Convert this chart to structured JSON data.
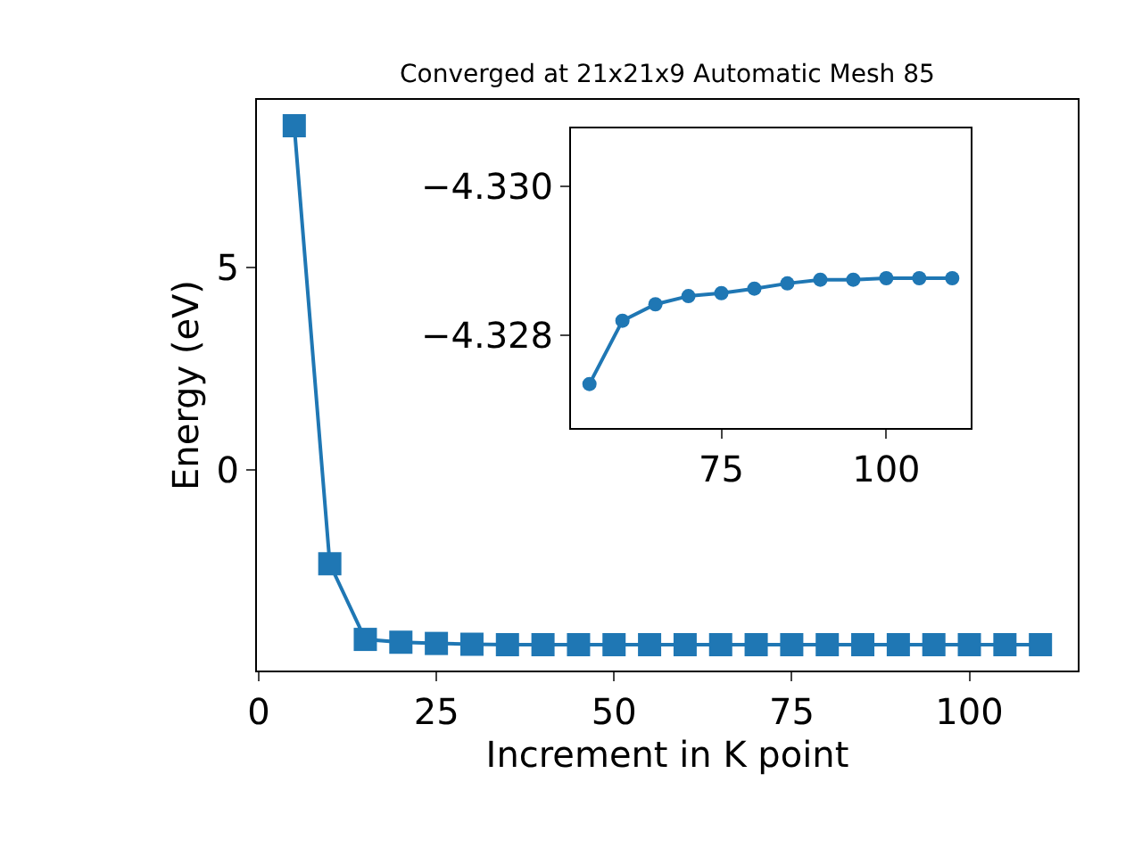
{
  "chart_data": [
    {
      "type": "line",
      "title": "Converged at 21x21x9 Automatic Mesh 85",
      "xlabel": "Increment in K point",
      "ylabel": "Energy (eV)",
      "x": [
        5,
        10,
        15,
        20,
        25,
        30,
        35,
        40,
        45,
        50,
        55,
        60,
        65,
        70,
        75,
        80,
        85,
        90,
        95,
        100,
        105,
        110
      ],
      "series": [
        {
          "color": "#1f77b4",
          "values": [
            8.5,
            -2.33,
            -4.2,
            -4.27,
            -4.3,
            -4.32,
            -4.33,
            -4.33,
            -4.33,
            -4.33,
            -4.33,
            -4.33,
            -4.33,
            -4.33,
            -4.33,
            -4.33,
            -4.33,
            -4.33,
            -4.33,
            -4.33,
            -4.33,
            -4.33
          ]
        }
      ],
      "xlim": [
        -0.25,
        115.25
      ],
      "ylim": [
        -4.97,
        9.14
      ],
      "xticks": [
        0,
        25,
        50,
        75,
        100
      ],
      "yticks": [
        0,
        5
      ],
      "marker": "square",
      "line_style": "solid"
    },
    {
      "type": "line",
      "x": [
        55,
        60,
        65,
        70,
        75,
        80,
        85,
        90,
        95,
        100,
        105,
        110
      ],
      "series": [
        {
          "color": "#1f77b4",
          "values": [
            -4.32735,
            -4.3282,
            -4.32842,
            -4.32853,
            -4.32857,
            -4.32863,
            -4.3287,
            -4.32875,
            -4.32875,
            -4.32877,
            -4.32877,
            -4.32877
          ]
        }
      ],
      "xlim": [
        52.2,
        112.8
      ],
      "ylim": [
        -4.32676,
        -4.33078
      ],
      "xticks": [
        75,
        100
      ],
      "yticks": [
        {
          "value": -4.33,
          "label": "−4.330"
        },
        {
          "value": -4.328,
          "label": "−4.328"
        }
      ],
      "marker": "circle",
      "line_style": "solid"
    }
  ]
}
